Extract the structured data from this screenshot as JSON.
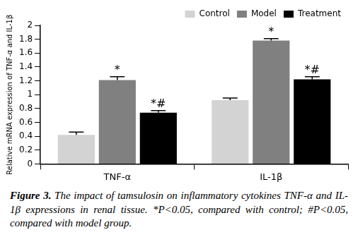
{
  "chart_data": {
    "type": "bar",
    "categories": [
      "TNF-α",
      "IL-1β"
    ],
    "series": [
      {
        "name": "Control",
        "color": "#d3d3d3",
        "values": [
          0.42,
          0.92
        ],
        "errors": [
          0.04,
          0.03
        ]
      },
      {
        "name": "Model",
        "color": "#808080",
        "values": [
          1.21,
          1.78
        ],
        "errors": [
          0.05,
          0.03
        ]
      },
      {
        "name": "Treatment",
        "color": "#000000",
        "values": [
          0.74,
          1.22
        ],
        "errors": [
          0.03,
          0.04
        ]
      }
    ],
    "y_label": "Relative mRNA expression of TNF-α and IL-1β",
    "ylim": [
      0,
      2
    ],
    "yticks": [
      0,
      0.2,
      0.4,
      0.6,
      0.8,
      1,
      1.2,
      1.4,
      1.6,
      1.8,
      2
    ],
    "grid": false,
    "legend": "top-right",
    "annotations": [
      {
        "category": "TNF-α",
        "series": "Model",
        "text": "*"
      },
      {
        "category": "TNF-α",
        "series": "Treatment",
        "text": "*#"
      },
      {
        "category": "IL-1β",
        "series": "Model",
        "text": "*"
      },
      {
        "category": "IL-1β",
        "series": "Treatment",
        "text": "*#"
      }
    ],
    "caption_label": "Figure 3.",
    "caption": "The impact of tamsulosin on inflammatory cytokines TNF-α and IL-1β expressions in renal tissue. *P<0.05, compared with control; #P<0.05, compared with model group."
  }
}
